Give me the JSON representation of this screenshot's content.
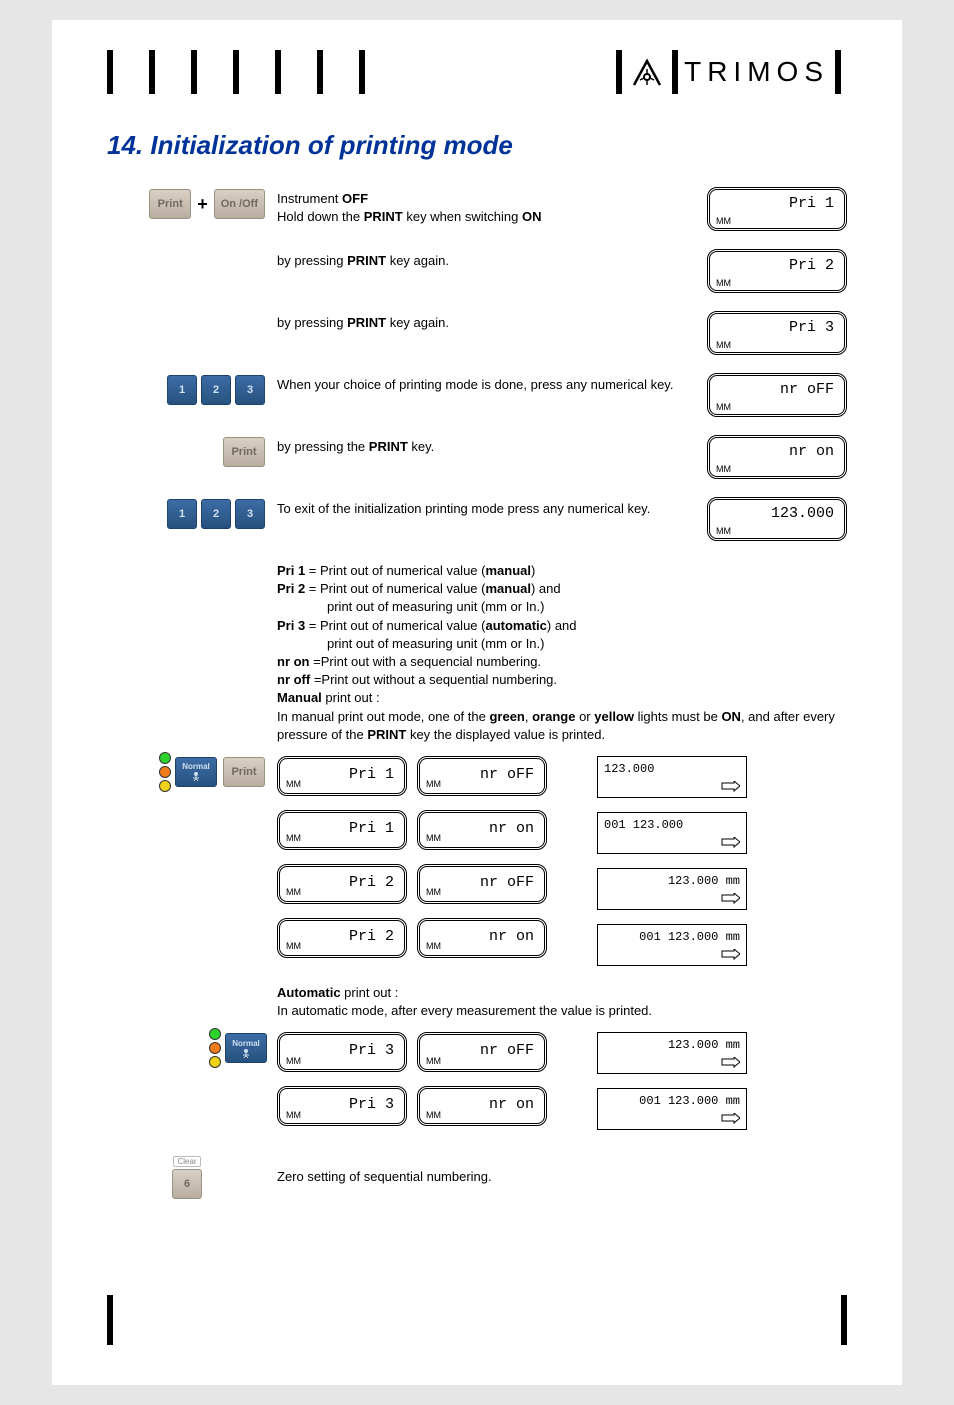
{
  "brand_text": "TRIMOS",
  "section_title": "14. Initialization of printing mode",
  "buttons": {
    "print": "Print",
    "onoff": "On /Off",
    "normal": "Normal",
    "clear": "Clear"
  },
  "steps": [
    {
      "text_parts": [
        "Instrument ",
        "OFF",
        "\nHold down the ",
        "PRINT",
        " key when switching ",
        "ON"
      ],
      "lcd": "Pri 1",
      "left_kind": "print_plus_onoff"
    },
    {
      "text_parts": [
        "by pressing ",
        "PRINT",
        " key again."
      ],
      "lcd": "Pri 2"
    },
    {
      "text_parts": [
        "by pressing ",
        "PRINT",
        " key again."
      ],
      "lcd": "Pri 3"
    },
    {
      "text_parts": [
        "When your choice of printing mode is done, press any numerical key."
      ],
      "lcd": "nr oFF",
      "left_kind": "num123"
    },
    {
      "text_parts": [
        "by pressing the ",
        "PRINT",
        " key."
      ],
      "lcd": "nr on",
      "left_kind": "print"
    },
    {
      "text_parts": [
        "To exit of the initialization printing mode press any numerical key."
      ],
      "lcd": "123.000",
      "left_kind": "num123"
    }
  ],
  "unit_label": "MM",
  "defs": {
    "pri1": {
      "k": "Pri 1",
      "v": " = Print out of numerical value (",
      "b": "manual",
      "end": ")"
    },
    "pri2a": {
      "k": "Pri 2",
      "v": " = Print out of numerical value (",
      "b": "manual",
      "end": ") and"
    },
    "pri2b": "print out of measuring unit (mm or In.)",
    "pri3a": {
      "k": "Pri 3",
      "v": " = Print out of numerical value (",
      "b": "automatic",
      "end": ") and"
    },
    "pri3b": "print out of measuring unit (mm or In.)",
    "nron": {
      "k": "nr on",
      "v": " =Print out with a sequencial numbering."
    },
    "nroff": {
      "k": "nr off",
      "v": " =Print out without a sequential numbering."
    },
    "manual_head": "Manual",
    "manual_head_rest": " print out :",
    "manual_body_parts": [
      "In manual print out mode, one of the ",
      "green",
      ", ",
      "orange",
      " or ",
      "yellow",
      " lights must be ",
      "ON",
      ", and after every pressure of the ",
      "PRINT",
      " key the displayed value is printed."
    ],
    "auto_head": "Automatic",
    "auto_head_rest": " print out :",
    "auto_body": "In automatic mode, after every measurement the value is printed.",
    "zero": "Zero setting of sequential numbering."
  },
  "matrix_manual": {
    "left": [
      "Pri 1",
      "Pri 1",
      "Pri 2",
      "Pri 2"
    ],
    "mid": [
      "nr oFF",
      "nr on",
      "nr oFF",
      "nr on"
    ],
    "slips": [
      {
        "text": "123.000",
        "align": "left"
      },
      {
        "text": "001   123.000",
        "align": "left"
      },
      {
        "text": "123.000 mm",
        "align": "right"
      },
      {
        "text": "001  123.000 mm",
        "align": "right"
      }
    ]
  },
  "matrix_auto": {
    "left": [
      "Pri 3",
      "Pri 3"
    ],
    "mid": [
      "nr oFF",
      "nr on"
    ],
    "slips": [
      {
        "text": "123.000 mm",
        "align": "right"
      },
      {
        "text": "001  123.000 mm",
        "align": "right"
      }
    ]
  },
  "clear_key": "6",
  "colors": {
    "heading": "#003399",
    "green": "#2bd32b",
    "orange": "#f07b1a",
    "yellow": "#f0d21a"
  },
  "fonts": {
    "body_size_pt": 10,
    "heading_size_pt": 19
  }
}
